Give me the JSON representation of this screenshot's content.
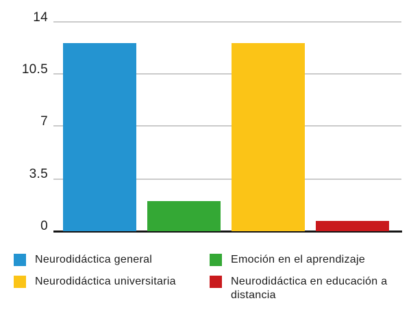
{
  "chart_data": {
    "type": "bar",
    "categories": [
      "Neurodidáctica general",
      "Emoción en el aprendizaje",
      "Neurodidáctica universitaria",
      "Neurodidáctica en educación a distancia"
    ],
    "values": [
      12.6,
      2,
      12.6,
      0.7
    ],
    "colors": [
      "#2494D1",
      "#34A835",
      "#FBC417",
      "#C91A1D"
    ],
    "title": "",
    "xlabel": "",
    "ylabel": "",
    "ylim": [
      0,
      14
    ],
    "yticks": [
      0,
      3.5,
      7,
      10.5,
      14
    ],
    "ytick_labels": [
      "14",
      "10.5",
      "7",
      "3.5",
      "0"
    ],
    "grid": true,
    "gridline_color": "#cbcbcb",
    "axis_color": "#141414",
    "legend_position": "bottom",
    "legend_order_display": [
      {
        "category_index": 0,
        "column": "left",
        "row": 1
      },
      {
        "category_index": 2,
        "column": "left",
        "row": 2
      },
      {
        "category_index": 1,
        "column": "right",
        "row": 1
      },
      {
        "category_index": 3,
        "column": "right",
        "row": 2
      }
    ]
  }
}
